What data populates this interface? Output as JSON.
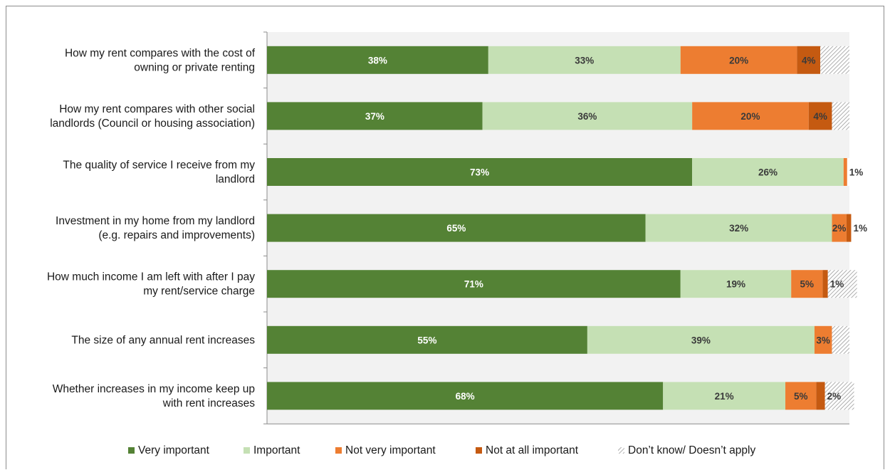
{
  "chart_data": {
    "type": "bar",
    "orientation": "horizontal",
    "stacked": true,
    "title": "",
    "xlabel": "",
    "ylabel": "",
    "xlim": [
      0,
      100
    ],
    "grid": false,
    "legend_position": "bottom",
    "categories": [
      [
        "How my rent compares with the cost of",
        "owning or private renting"
      ],
      [
        "How my rent compares with other social",
        "landlords (Council or housing association)"
      ],
      [
        "The quality of service I receive from my",
        "landlord"
      ],
      [
        "Investment in my home from my landlord",
        "(e.g. repairs and improvements)"
      ],
      [
        "How much income I am left with after I pay",
        "my rent/service charge"
      ],
      [
        "The size of any annual rent increases"
      ],
      [
        "Whether increases in my income keep up",
        "with rent increases"
      ]
    ],
    "series": [
      {
        "name": "Very important",
        "color": "#548235",
        "label_color": "#ffffff",
        "pattern": false,
        "values": [
          38,
          37,
          73,
          65,
          71,
          55,
          68
        ],
        "labels": [
          "38%",
          "37%",
          "73%",
          "65%",
          "71%",
          "55%",
          "68%"
        ]
      },
      {
        "name": "Important",
        "color": "#c5e0b4",
        "label_color": "#3a3a3a",
        "pattern": false,
        "values": [
          33,
          36,
          26,
          32,
          19,
          39,
          21
        ],
        "labels": [
          "33%",
          "36%",
          "26%",
          "32%",
          "19%",
          "39%",
          "21%"
        ]
      },
      {
        "name": "Not very important",
        "color": "#ed7d31",
        "label_color": "#3a3a3a",
        "pattern": false,
        "values": [
          20,
          20,
          0.6,
          2.5,
          5.4,
          3,
          5.3
        ],
        "labels": [
          "20%",
          "20%",
          "1%",
          "2%",
          "5%",
          "3%",
          "5%"
        ]
      },
      {
        "name": "Not at all important",
        "color": "#c55a11",
        "label_color": "#3a3a3a",
        "pattern": false,
        "values": [
          4,
          4,
          0,
          0.8,
          0.9,
          0,
          1.5
        ],
        "labels": [
          "4%",
          "4%",
          "",
          "1%",
          "1%",
          "",
          "2%"
        ]
      },
      {
        "name": "Don’t know/ Doesn’t apply",
        "color": "#a6a6a6",
        "label_color": "#3a3a3a",
        "pattern": true,
        "values": [
          5,
          3,
          0,
          0,
          5,
          3,
          5
        ],
        "labels": [
          "",
          "",
          "",
          "",
          "",
          "",
          ""
        ]
      }
    ]
  }
}
